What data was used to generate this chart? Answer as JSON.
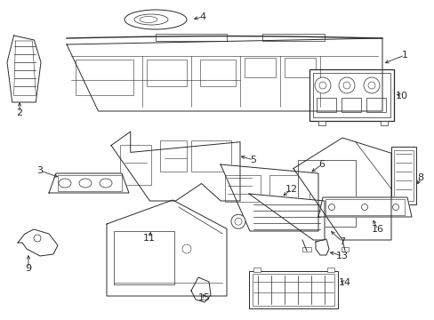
{
  "background_color": "#ffffff",
  "line_color": "#2a2a2a",
  "figsize": [
    4.89,
    3.6
  ],
  "dpi": 100,
  "label_fontsize": 8.0,
  "lw": 0.7
}
